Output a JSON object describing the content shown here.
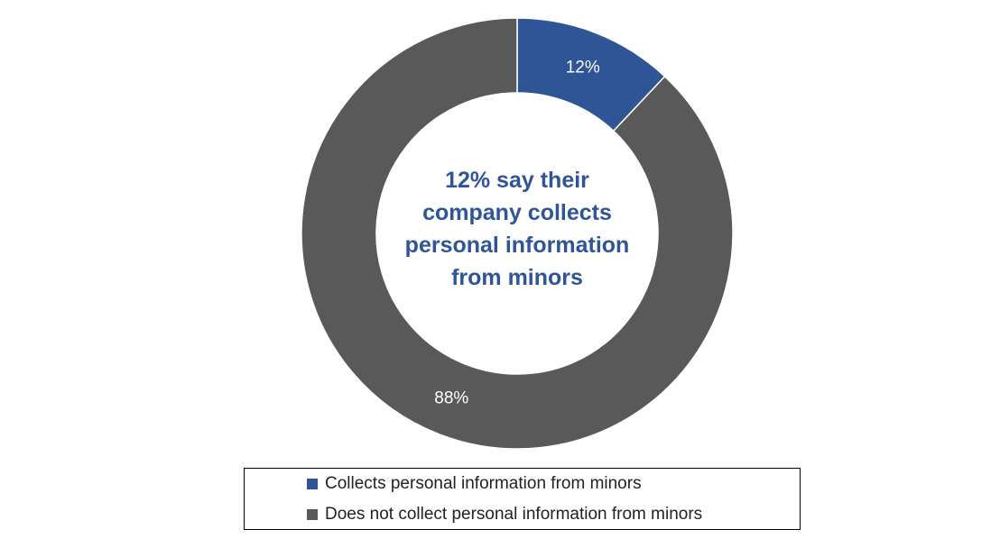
{
  "chart_data": {
    "type": "pie",
    "subtype": "donut",
    "categories": [
      "Collects personal information from minors",
      "Does not collect personal information from minors"
    ],
    "values": [
      12,
      88
    ],
    "data_labels": [
      "12%",
      "88%"
    ],
    "colors": [
      "#2f5597",
      "#595959"
    ],
    "center_text_lines": [
      "12% say their",
      "company collects",
      "personal information",
      "from minors"
    ],
    "center_text_color": "#2f5597",
    "legend": {
      "placement": "bottom",
      "entries": [
        "Collects personal information from minors",
        "Does not collect personal information from minors"
      ]
    }
  }
}
